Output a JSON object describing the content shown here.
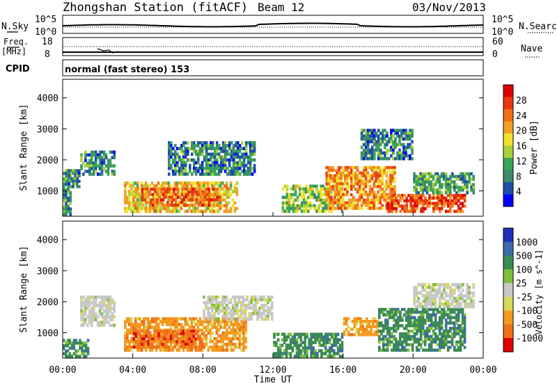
{
  "header": {
    "station": "Zhongshan Station (fitACF)",
    "beam": "Beam 12",
    "date": "03/Nov/2013"
  },
  "strips": {
    "nsky_label": "N.Sky",
    "nsky_ticks": [
      "10^5",
      "10^0"
    ],
    "nsearch_label": "N.Search",
    "nsearch_ticks": [
      "10^5",
      "10^0"
    ],
    "freq_label_1": "Freq.",
    "freq_label_2": "[MHz]",
    "freq_ticks": [
      "18",
      "8"
    ],
    "nave_label": "Nave",
    "nave_ticks": [
      "60",
      "0"
    ],
    "cpid_label": "CPID",
    "cpid_text": "normal (fast stereo) 153"
  },
  "colors": {
    "power": [
      "#0000ff",
      "#1f4fa8",
      "#3c8a6a",
      "#3aa655",
      "#a8d23a",
      "#f2e12c",
      "#f2a024",
      "#f07018",
      "#e8380e",
      "#e00000"
    ],
    "velocity": [
      "#e00000",
      "#f07018",
      "#f29a1e",
      "#d8d85a",
      "#c8c8c8",
      "#7fc03a",
      "#3c8a55",
      "#3d6aa8",
      "#1e2fb8"
    ]
  },
  "chart_data": [
    {
      "type": "heatmap",
      "title": "",
      "xlabel": "",
      "ylabel": "Slant Range [km]",
      "xlim": [
        0,
        24
      ],
      "ylim": [
        180,
        4600
      ],
      "x_ticks": [
        0,
        4,
        8,
        12,
        16,
        20,
        24
      ],
      "y_ticks": [
        1000,
        2000,
        3000,
        4000
      ],
      "colorbar": {
        "label": "Power [dB]",
        "range": [
          0,
          32
        ],
        "tick_labels": [
          "4",
          "8",
          "12",
          "16",
          "20",
          "24",
          "28"
        ]
      },
      "regions": [
        {
          "t": [
            0.0,
            0.5
          ],
          "r": [
            200,
            1700
          ],
          "v": 10
        },
        {
          "t": [
            0.3,
            1.0
          ],
          "r": [
            1100,
            1700
          ],
          "v": 8
        },
        {
          "t": [
            1.0,
            3.0
          ],
          "r": [
            1500,
            2300
          ],
          "v": 8
        },
        {
          "t": [
            3.5,
            10.0
          ],
          "r": [
            300,
            1300
          ],
          "v": 18
        },
        {
          "t": [
            4.5,
            9.0
          ],
          "r": [
            500,
            1100
          ],
          "v": 24
        },
        {
          "t": [
            6.0,
            11.0
          ],
          "r": [
            1500,
            2600
          ],
          "v": 8
        },
        {
          "t": [
            12.5,
            16.0
          ],
          "r": [
            300,
            1200
          ],
          "v": 14
        },
        {
          "t": [
            15.0,
            19.0
          ],
          "r": [
            400,
            1800
          ],
          "v": 22
        },
        {
          "t": [
            17.0,
            20.0
          ],
          "r": [
            2000,
            3000
          ],
          "v": 8
        },
        {
          "t": [
            18.5,
            23.0
          ],
          "r": [
            300,
            900
          ],
          "v": 26
        },
        {
          "t": [
            20.0,
            23.5
          ],
          "r": [
            900,
            1600
          ],
          "v": 10
        }
      ]
    },
    {
      "type": "heatmap",
      "title": "",
      "xlabel": "Time UT",
      "ylabel": "Slant Range [km]",
      "xlim": [
        0,
        24
      ],
      "ylim": [
        180,
        4600
      ],
      "x_tick_labels": [
        "00:00",
        "04:00",
        "08:00",
        "12:00",
        "16:00",
        "20:00",
        "00:00"
      ],
      "x_ticks": [
        0,
        4,
        8,
        12,
        16,
        20,
        24
      ],
      "y_ticks": [
        1000,
        2000,
        3000,
        4000
      ],
      "colorbar": {
        "label": "Velocity [m s^-1]",
        "tick_labels": [
          "1000",
          "500",
          "100",
          "25",
          "-25",
          "-100",
          "-500",
          "-1000"
        ]
      },
      "regions": [
        {
          "t": [
            0.0,
            1.5
          ],
          "r": [
            200,
            800
          ],
          "c": 6
        },
        {
          "t": [
            1.0,
            3.0
          ],
          "r": [
            1200,
            2200
          ],
          "c": 4
        },
        {
          "t": [
            3.5,
            10.5
          ],
          "r": [
            400,
            1500
          ],
          "c": 2
        },
        {
          "t": [
            4.0,
            8.0
          ],
          "r": [
            500,
            1100
          ],
          "c": 1
        },
        {
          "t": [
            8.0,
            12.0
          ],
          "r": [
            1400,
            2200
          ],
          "c": 4
        },
        {
          "t": [
            12.0,
            16.0
          ],
          "r": [
            200,
            1000
          ],
          "c": 6
        },
        {
          "t": [
            16.0,
            18.0
          ],
          "r": [
            900,
            1500
          ],
          "c": 2
        },
        {
          "t": [
            18.0,
            23.0
          ],
          "r": [
            400,
            1800
          ],
          "c": 6
        },
        {
          "t": [
            20.0,
            23.5
          ],
          "r": [
            1800,
            2600
          ],
          "c": 4
        }
      ]
    }
  ]
}
